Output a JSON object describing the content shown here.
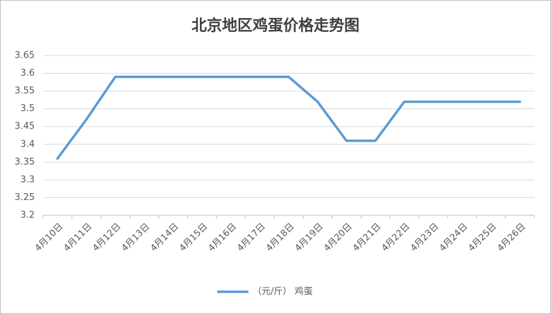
{
  "chart_data": {
    "type": "line",
    "title": "北京地区鸡蛋价格走势图",
    "categories": [
      "4月10日",
      "4月11日",
      "4月12日",
      "4月13日",
      "4月14日",
      "4月15日",
      "4月16日",
      "4月17日",
      "4月18日",
      "4月19日",
      "4月20日",
      "4月21日",
      "4月22日",
      "4月23日",
      "4月24日",
      "4月25日",
      "4月26日"
    ],
    "series": [
      {
        "name": "（元/斤） 鸡蛋",
        "color": "#5b9bd5",
        "values": [
          3.36,
          3.47,
          3.59,
          3.59,
          3.59,
          3.59,
          3.59,
          3.59,
          3.59,
          3.52,
          3.41,
          3.41,
          3.52,
          3.52,
          3.52,
          3.52,
          3.52
        ]
      }
    ],
    "ylim": [
      3.2,
      3.65
    ],
    "yticks": [
      3.2,
      3.25,
      3.3,
      3.35,
      3.4,
      3.45,
      3.5,
      3.55,
      3.6,
      3.65
    ],
    "grid": true,
    "legend": "bottom"
  }
}
